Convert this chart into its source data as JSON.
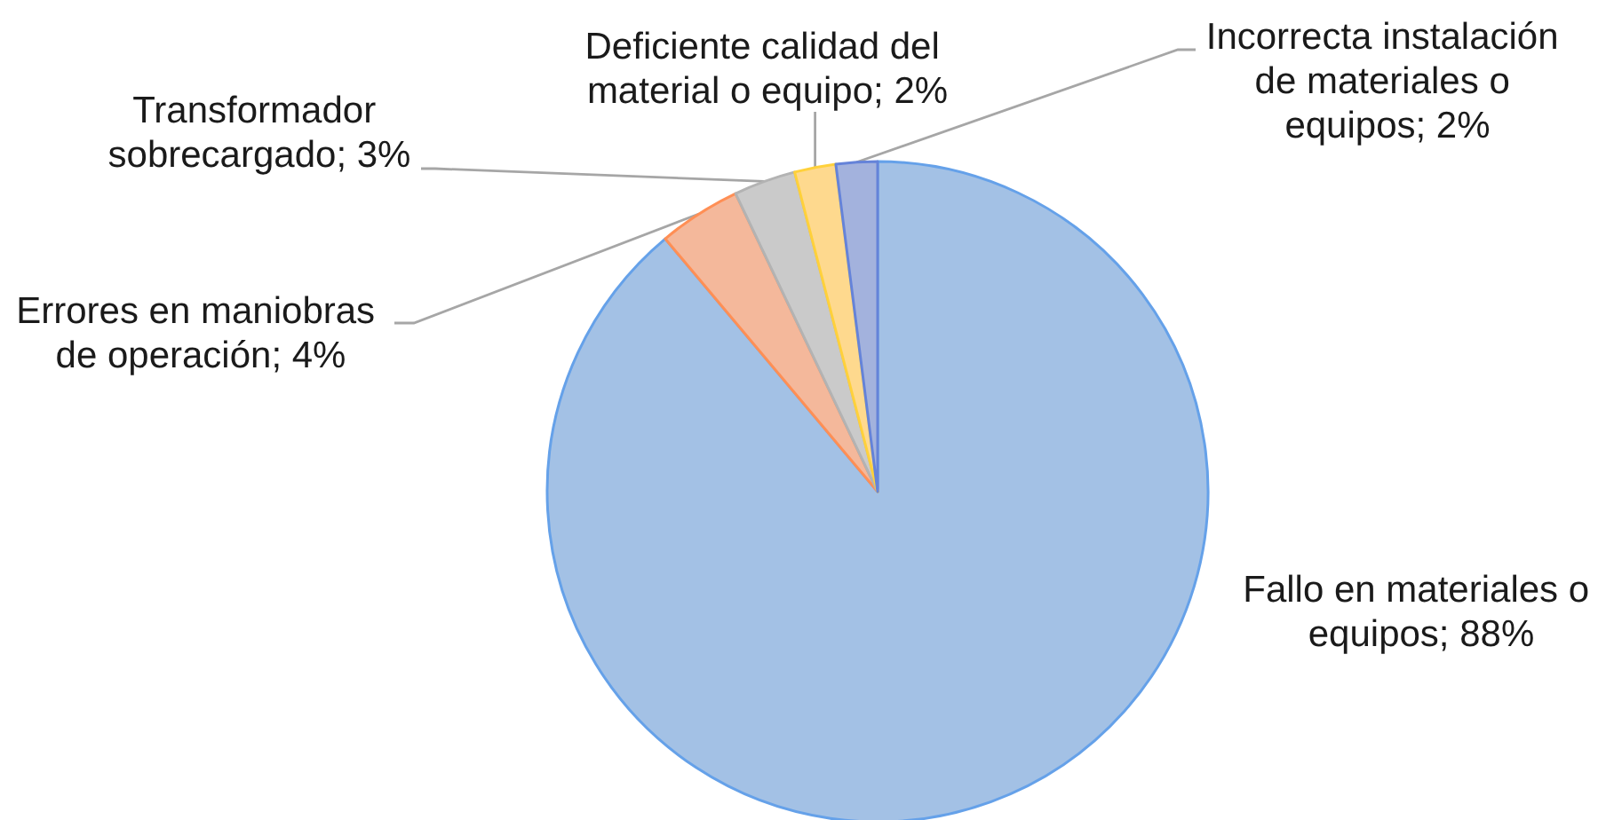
{
  "chart_data": {
    "type": "pie",
    "categories": [
      "Fallo en materiales o equipos",
      "Errores en maniobras de operación",
      "Transformador sobrecargado",
      "Deficiente calidad del material o equipo",
      "Incorrecta instalación de materiales o equipos"
    ],
    "values": [
      88,
      4,
      3,
      2,
      2
    ],
    "value_labels": [
      "88%",
      "4%",
      "3%",
      "2%",
      "2%"
    ],
    "colors": [
      "#a3c1e5",
      "#f4b89b",
      "#cacaca",
      "#fed98e",
      "#a3b2dd"
    ]
  }
}
